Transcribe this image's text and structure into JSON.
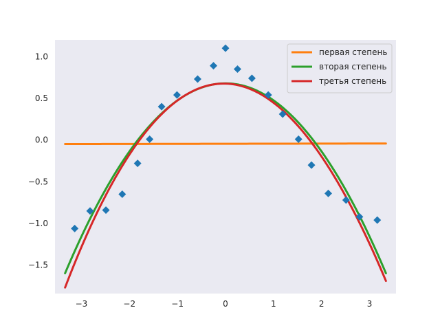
{
  "chart_data": {
    "type": "scatter",
    "title": "",
    "xlabel": "",
    "ylabel": "",
    "xlim": [
      -3.55,
      3.55
    ],
    "ylim": [
      -1.84,
      1.2
    ],
    "grid": true,
    "legend_position": "top-right",
    "xticks": [
      -3,
      -2,
      -1,
      0,
      1,
      2,
      3
    ],
    "yticks": [
      -1.5,
      -1.0,
      -0.5,
      0.0,
      0.5,
      1.0
    ],
    "xtick_labels": [
      "−3",
      "−2",
      "−1",
      "0",
      "1",
      "2",
      "3"
    ],
    "ytick_labels": [
      "−1.5",
      "−1.0",
      "−0.5",
      "0.0",
      "0.5",
      "1.0"
    ],
    "colors": {
      "plot_background": "#eaeaf2",
      "points": "#1f77b4",
      "first": "#ff7f0e",
      "second": "#2ca02c",
      "third": "#d62728"
    },
    "points": {
      "marker": "diamond",
      "x": [
        -3.14,
        -2.82,
        -2.49,
        -2.15,
        -1.83,
        -1.58,
        -1.33,
        -1.01,
        -0.58,
        -0.25,
        0.0,
        0.25,
        0.55,
        0.89,
        1.19,
        1.52,
        1.79,
        2.14,
        2.51,
        2.79,
        3.16
      ],
      "y": [
        -1.06,
        -0.85,
        -0.84,
        -0.65,
        -0.28,
        0.01,
        0.4,
        0.54,
        0.73,
        0.89,
        1.1,
        0.85,
        0.74,
        0.54,
        0.31,
        0.01,
        -0.3,
        -0.64,
        -0.72,
        -0.92,
        -0.96
      ]
    },
    "series": [
      {
        "name": "первая степень",
        "key": "first",
        "x_range": [
          -3.34,
          3.34
        ],
        "coeffs": [
          -0.045,
          0.001
        ]
      },
      {
        "name": "вторая степень",
        "key": "second",
        "x_range": [
          -3.34,
          3.34
        ],
        "coeffs": [
          0.679,
          0.0,
          -0.204
        ]
      },
      {
        "name": "третья степень",
        "key": "third",
        "x_range": [
          -3.34,
          3.34
        ],
        "coeffs": [
          0.676,
          -0.016,
          -0.2155,
          0.0025
        ]
      }
    ]
  }
}
